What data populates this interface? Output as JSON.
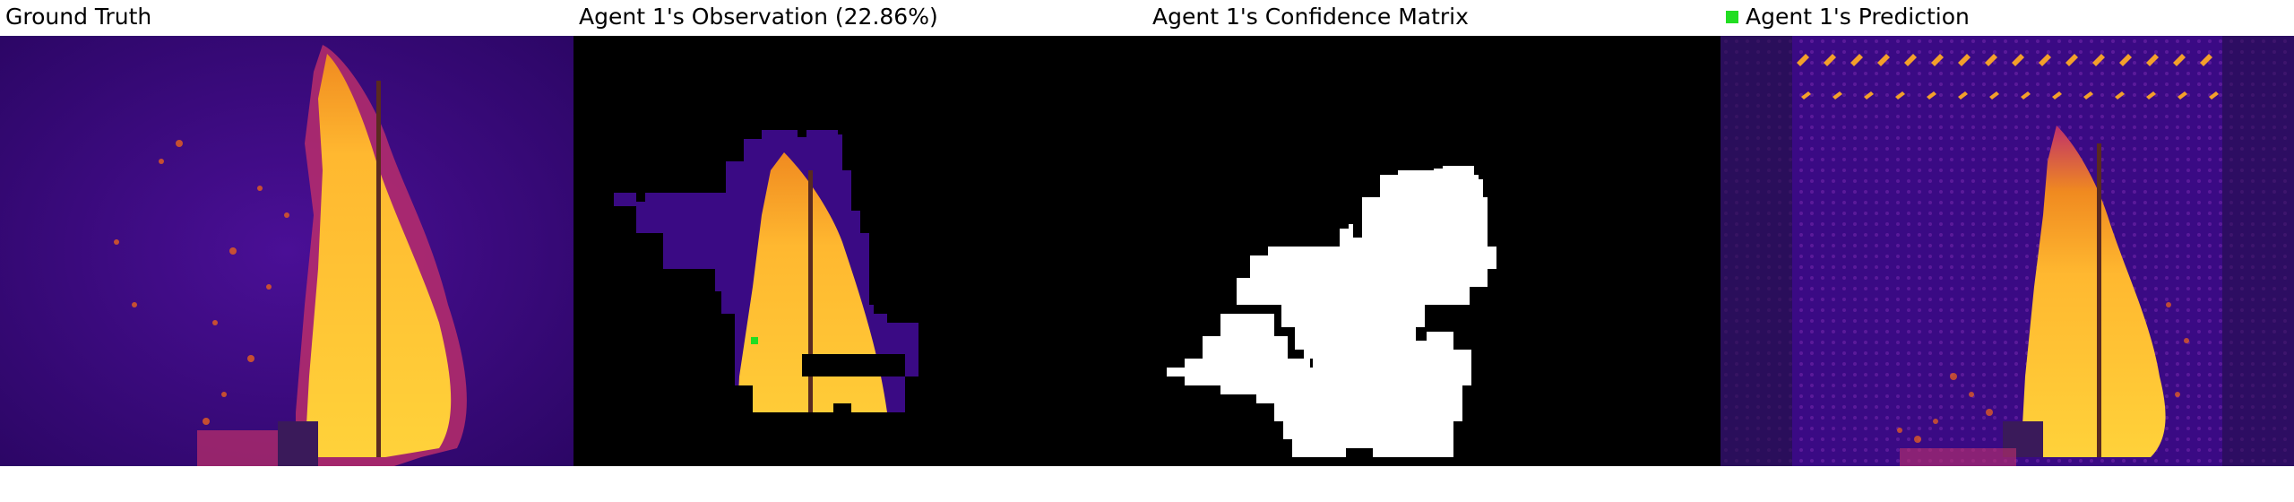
{
  "panels": [
    {
      "title": "Ground Truth"
    },
    {
      "title": "Agent 1's Observation (22.86%)"
    },
    {
      "title": "Agent 1's Confidence Matrix"
    },
    {
      "title": "Agent 1's Prediction"
    }
  ],
  "colors": {
    "background_purple": "#3a0a84",
    "fire_yellow": "#ffd23a",
    "fire_orange": "#f08a20",
    "observation_black": "#000000",
    "confidence_white": "#ffffff",
    "agent_marker_green": "#22dd22"
  },
  "legend": {
    "swatch_color": "#22dd22"
  }
}
